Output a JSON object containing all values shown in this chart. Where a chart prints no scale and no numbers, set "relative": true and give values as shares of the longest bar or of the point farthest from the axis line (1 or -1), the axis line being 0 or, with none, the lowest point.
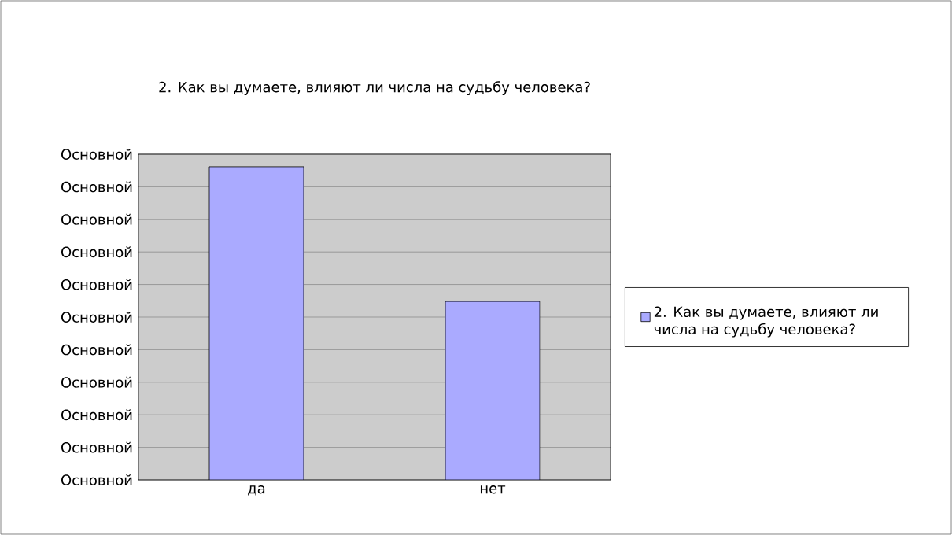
{
  "chart_data": {
    "type": "bar",
    "title": "2. Как вы думаете, влияют ли числа на судьбу человека?",
    "categories": [
      "да",
      "нет"
    ],
    "series": [
      {
        "name": "2. Как вы думаете, влияют ли числа на судьбу человека?",
        "color": "#aaaaff",
        "values": [
          1,
          0.57
        ]
      }
    ],
    "relative": true,
    "annotations": [
      "Основной",
      "Основной",
      "Основной",
      "Основной",
      "Основной",
      "Основной",
      "Основной",
      "Основной",
      "Основной",
      "Основной",
      "Основной"
    ],
    "grid": "y",
    "legend": "right"
  }
}
